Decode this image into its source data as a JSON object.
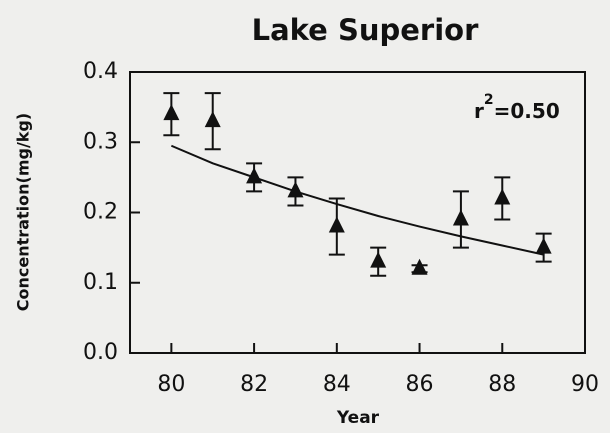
{
  "chart_data": {
    "type": "scatter",
    "title": "Lake Superior",
    "xlabel": "Year",
    "ylabel": "Concentration(mg/kg)",
    "annotation": {
      "base": "r",
      "superscript": "2",
      "text": "=0.50"
    },
    "x": [
      80,
      81,
      82,
      83,
      84,
      85,
      86,
      87,
      88,
      89
    ],
    "values": [
      0.34,
      0.33,
      0.25,
      0.23,
      0.18,
      0.13,
      0.12,
      0.19,
      0.22,
      0.15
    ],
    "errors": [
      0.03,
      0.04,
      0.02,
      0.02,
      0.04,
      0.02,
      0.005,
      0.04,
      0.03,
      0.02
    ],
    "color": "#111111",
    "fit": {
      "x": [
        80,
        81,
        82,
        83,
        84,
        85,
        86,
        87,
        88,
        89
      ],
      "values": [
        0.295,
        0.27,
        0.25,
        0.23,
        0.212,
        0.195,
        0.18,
        0.166,
        0.153,
        0.14
      ]
    },
    "xlim": [
      79,
      90
    ],
    "ylim": [
      0,
      0.4
    ],
    "xticks": [
      80,
      82,
      84,
      86,
      88,
      90
    ],
    "yticks": [
      {
        "value": 0,
        "label": "0.0"
      },
      0.1,
      0.2,
      0.3,
      0.4
    ]
  }
}
